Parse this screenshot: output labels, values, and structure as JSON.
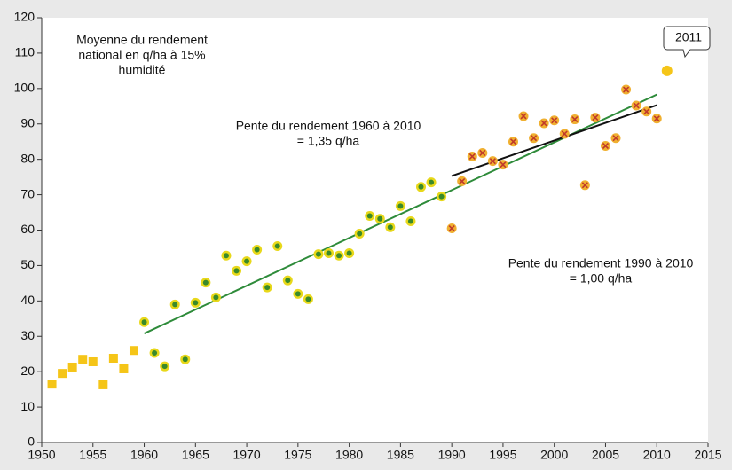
{
  "chart_data": {
    "type": "scatter",
    "xlim": [
      1950,
      2015
    ],
    "xticks": [
      1950,
      1955,
      1960,
      1965,
      1970,
      1975,
      1980,
      1985,
      1990,
      1995,
      2000,
      2005,
      2010,
      2015
    ],
    "ylim": [
      0,
      120
    ],
    "yticks": [
      0,
      10,
      20,
      30,
      40,
      50,
      60,
      70,
      80,
      90,
      100,
      110,
      120
    ],
    "series": [
      {
        "marker": "square",
        "color": "#f5c518",
        "x": [
          1951,
          1952,
          1953,
          1954,
          1955,
          1956,
          1957,
          1958,
          1959
        ],
        "values": [
          16.5,
          19.5,
          21.3,
          23.5,
          22.8,
          16.3,
          23.8,
          20.8,
          26
        ]
      },
      {
        "marker": "circle-dot",
        "color": "#e8d81a",
        "inner_color": "#3a8a2a",
        "x": [
          1960,
          1961,
          1962,
          1963,
          1964,
          1965,
          1966,
          1967,
          1968,
          1969,
          1970,
          1971,
          1972,
          1973,
          1974,
          1975,
          1976,
          1977,
          1978,
          1979,
          1980,
          1981,
          1982,
          1983,
          1984,
          1985,
          1986,
          1987,
          1988,
          1989
        ],
        "values": [
          34,
          25.3,
          21.5,
          39,
          23.5,
          39.5,
          45.2,
          41,
          52.8,
          48.5,
          51.2,
          54.5,
          43.8,
          55.5,
          45.8,
          42,
          40.5,
          53.2,
          53.5,
          52.8,
          53.5,
          59,
          64,
          63.2,
          60.8,
          66.8,
          62.5,
          72.2,
          73.5,
          69.5
        ]
      },
      {
        "marker": "circle-x",
        "color": "#f0b030",
        "inner_color": "#c0392b",
        "x": [
          1990,
          1991,
          1992,
          1993,
          1994,
          1995,
          1996,
          1997,
          1998,
          1999,
          2000,
          2001,
          2002,
          2003,
          2004,
          2005,
          2006,
          2007,
          2008,
          2009,
          2010
        ],
        "values": [
          60.5,
          73.8,
          80.8,
          81.8,
          79.5,
          78.5,
          85,
          92.2,
          86,
          90.2,
          91,
          87.2,
          91.3,
          72.7,
          91.8,
          83.8,
          86,
          99.7,
          95.2,
          93.5,
          91.5
        ]
      },
      {
        "marker": "circle",
        "color": "#f5c518",
        "x": [
          2011
        ],
        "values": [
          105
        ]
      }
    ],
    "trend_lines": [
      {
        "color": "#2e8b3a",
        "x": [
          1960,
          2010
        ],
        "values": [
          30.8,
          98.3
        ]
      },
      {
        "color": "#111111",
        "x": [
          1990,
          2010
        ],
        "values": [
          75.3,
          95.3
        ]
      }
    ],
    "annotations": [
      {
        "lines": [
          "Moyenne du rendement",
          "national en q/ha à 15%",
          "humidité"
        ]
      },
      {
        "lines": [
          "Pente du rendement 1960 à 2010",
          "= 1,35 q/ha"
        ]
      },
      {
        "lines": [
          "Pente du rendement 1990 à 2010",
          "= 1,00 q/ha"
        ]
      },
      {
        "lines": [
          "2011"
        ]
      }
    ]
  }
}
